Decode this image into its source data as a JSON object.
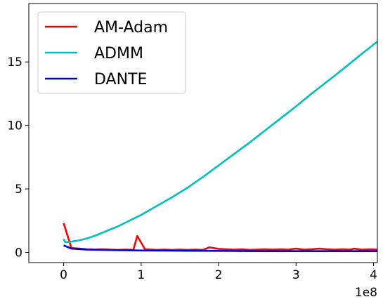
{
  "chart_data": {
    "type": "line",
    "title": "",
    "xlabel": "",
    "ylabel": "",
    "x_offset_label": "1e8",
    "xlim": [
      -0.45,
      4.05
    ],
    "ylim": [
      -0.8,
      19.6
    ],
    "xticks": [
      0,
      1,
      2,
      3,
      4
    ],
    "xtick_labels": [
      "0",
      "1",
      "2",
      "3",
      "4"
    ],
    "yticks": [
      0,
      5,
      10,
      15
    ],
    "ytick_labels": [
      "0",
      "5",
      "10",
      "15"
    ],
    "grid": false,
    "legend_position": "upper-left",
    "series": [
      {
        "name": "AM-Adam",
        "color": "#ff0000",
        "x": [
          0,
          0.1,
          0.2,
          0.3,
          0.4,
          0.5,
          0.6,
          0.7,
          0.8,
          0.9,
          0.95,
          1.05,
          1.2,
          1.3,
          1.4,
          1.5,
          1.6,
          1.7,
          1.8,
          1.88,
          2.0,
          2.1,
          2.2,
          2.3,
          2.4,
          2.5,
          2.6,
          2.7,
          2.8,
          2.9,
          3.0,
          3.1,
          3.2,
          3.3,
          3.4,
          3.5,
          3.6,
          3.7,
          3.75,
          3.85,
          3.95,
          4.05
        ],
        "y": [
          2.3,
          0.35,
          0.3,
          0.25,
          0.22,
          0.25,
          0.22,
          0.2,
          0.22,
          0.2,
          1.3,
          0.25,
          0.2,
          0.22,
          0.2,
          0.22,
          0.2,
          0.22,
          0.2,
          0.4,
          0.28,
          0.25,
          0.22,
          0.25,
          0.2,
          0.22,
          0.25,
          0.22,
          0.25,
          0.22,
          0.3,
          0.22,
          0.25,
          0.3,
          0.25,
          0.22,
          0.25,
          0.22,
          0.3,
          0.22,
          0.25,
          0.22
        ]
      },
      {
        "name": "ADMM",
        "color": "#00bfbf",
        "x": [
          0,
          0.02,
          0.1,
          0.2,
          0.3,
          0.4,
          0.5,
          0.6,
          0.7,
          0.8,
          0.9,
          1.0,
          1.2,
          1.4,
          1.6,
          1.8,
          2.0,
          2.2,
          2.4,
          2.6,
          2.8,
          3.0,
          3.2,
          3.4,
          3.6,
          3.8,
          4.05
        ],
        "y": [
          1.05,
          0.8,
          0.85,
          0.95,
          1.1,
          1.3,
          1.55,
          1.8,
          2.05,
          2.35,
          2.65,
          2.95,
          3.65,
          4.35,
          5.1,
          5.95,
          6.85,
          7.75,
          8.65,
          9.6,
          10.55,
          11.5,
          12.5,
          13.45,
          14.4,
          15.4,
          16.6
        ]
      },
      {
        "name": "DANTE",
        "color": "#0000dd",
        "x": [
          0,
          0.1,
          0.3,
          0.5,
          0.7,
          1.0,
          1.3,
          1.6,
          2.0,
          2.5,
          3.0,
          3.5,
          4.05
        ],
        "y": [
          0.55,
          0.3,
          0.22,
          0.2,
          0.18,
          0.15,
          0.14,
          0.13,
          0.12,
          0.1,
          0.1,
          0.1,
          0.1
        ]
      }
    ]
  }
}
